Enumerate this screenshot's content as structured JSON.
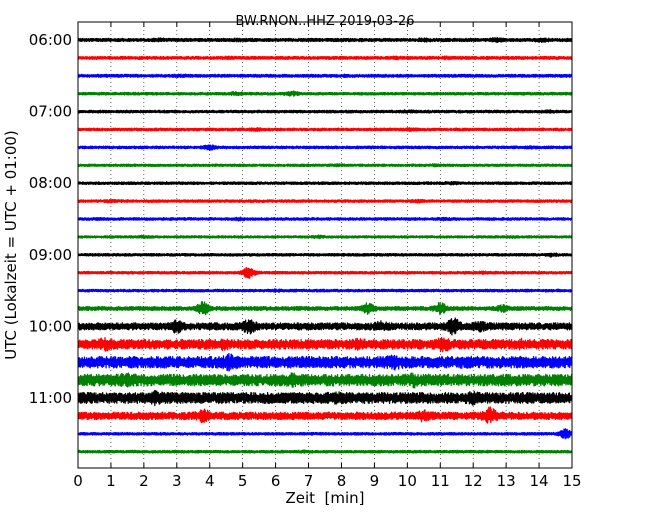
{
  "chart_data": {
    "type": "line",
    "title": "BW.RNON..HHZ 2019-03-26",
    "xlabel": "Zeit  [min]",
    "ylabel": "UTC (Lokalzeit = UTC + 01:00)",
    "xlim": [
      0,
      15
    ],
    "x_ticks": [
      "0",
      "1",
      "2",
      "3",
      "4",
      "5",
      "6",
      "7",
      "8",
      "9",
      "10",
      "11",
      "12",
      "13",
      "14",
      "15"
    ],
    "y_ticks": [
      "06:00",
      "07:00",
      "08:00",
      "09:00",
      "10:00",
      "11:00"
    ],
    "grid": "vertical dotted at each minute",
    "trace_colors": [
      "#000000",
      "#ff0000",
      "#0000ff",
      "#008000"
    ],
    "series": [
      {
        "start": "06:00",
        "amplitude": 1.0,
        "events": [
          {
            "t": 2.5,
            "a": 1.3
          },
          {
            "t": 4.9,
            "a": 1.2
          },
          {
            "t": 10.5,
            "a": 1.3
          },
          {
            "t": 12.7,
            "a": 1.6
          },
          {
            "t": 14.1,
            "a": 1.6
          }
        ]
      },
      {
        "start": "06:15",
        "amplitude": 0.9,
        "events": [
          {
            "t": 4.5,
            "a": 1.2
          },
          {
            "t": 9.7,
            "a": 1.2
          },
          {
            "t": 11.2,
            "a": 1.2
          }
        ]
      },
      {
        "start": "06:30",
        "amplitude": 0.9,
        "events": [
          {
            "t": 3.1,
            "a": 1.2
          },
          {
            "t": 8.1,
            "a": 1.1
          }
        ]
      },
      {
        "start": "06:45",
        "amplitude": 0.8,
        "events": [
          {
            "t": 4.8,
            "a": 1.5
          },
          {
            "t": 6.5,
            "a": 1.7
          }
        ]
      },
      {
        "start": "07:00",
        "amplitude": 0.8,
        "events": [
          {
            "t": 10.0,
            "a": 1.2
          },
          {
            "t": 14.3,
            "a": 1.1
          }
        ]
      },
      {
        "start": "07:15",
        "amplitude": 0.8,
        "events": [
          {
            "t": 5.4,
            "a": 1.3
          },
          {
            "t": 10.1,
            "a": 1.2
          }
        ]
      },
      {
        "start": "07:30",
        "amplitude": 0.8,
        "events": [
          {
            "t": 4.0,
            "a": 1.9
          },
          {
            "t": 13.8,
            "a": 1.0
          }
        ]
      },
      {
        "start": "07:45",
        "amplitude": 0.7,
        "events": [
          {
            "t": 7.9,
            "a": 1.0
          },
          {
            "t": 10.8,
            "a": 1.0
          }
        ]
      },
      {
        "start": "08:00",
        "amplitude": 0.8,
        "events": [
          {
            "t": 11.3,
            "a": 1.2
          }
        ]
      },
      {
        "start": "08:15",
        "amplitude": 0.8,
        "events": [
          {
            "t": 1.0,
            "a": 1.1
          },
          {
            "t": 10.3,
            "a": 1.3
          }
        ]
      },
      {
        "start": "08:30",
        "amplitude": 0.8,
        "events": [
          {
            "t": 0.6,
            "a": 1.0
          },
          {
            "t": 4.9,
            "a": 1.3
          },
          {
            "t": 11.1,
            "a": 1.2
          }
        ]
      },
      {
        "start": "08:45",
        "amplitude": 0.7,
        "events": [
          {
            "t": 2.0,
            "a": 1.1
          },
          {
            "t": 7.3,
            "a": 1.1
          },
          {
            "t": 13.2,
            "a": 1.0
          }
        ]
      },
      {
        "start": "09:00",
        "amplitude": 0.8,
        "events": [
          {
            "t": 14.4,
            "a": 1.4
          }
        ]
      },
      {
        "start": "09:15",
        "amplitude": 0.8,
        "events": [
          {
            "t": 5.2,
            "a": 4.0
          },
          {
            "t": 12.3,
            "a": 1.1
          }
        ]
      },
      {
        "start": "09:30",
        "amplitude": 0.8,
        "events": [
          {
            "t": 6.0,
            "a": 1.1
          }
        ]
      },
      {
        "start": "09:45",
        "amplitude": 1.2,
        "events": [
          {
            "t": 3.8,
            "a": 4.5
          },
          {
            "t": 8.8,
            "a": 3.8
          },
          {
            "t": 11.0,
            "a": 4.3
          },
          {
            "t": 12.9,
            "a": 2.5
          }
        ]
      },
      {
        "start": "10:00",
        "amplitude": 2.2,
        "events": [
          {
            "t": 3.0,
            "a": 4.5
          },
          {
            "t": 5.2,
            "a": 5.0
          },
          {
            "t": 9.2,
            "a": 3.5
          },
          {
            "t": 11.4,
            "a": 6.0
          },
          {
            "t": 12.2,
            "a": 3.5
          }
        ]
      },
      {
        "start": "10:15",
        "amplitude": 3.0,
        "events": [
          {
            "t": 0.8,
            "a": 4.5
          },
          {
            "t": 4.4,
            "a": 3.8
          },
          {
            "t": 8.5,
            "a": 3.8
          },
          {
            "t": 11.1,
            "a": 5.0
          },
          {
            "t": 13.4,
            "a": 3.8
          }
        ]
      },
      {
        "start": "10:30",
        "amplitude": 3.6,
        "events": [
          {
            "t": 4.6,
            "a": 5.5
          },
          {
            "t": 9.6,
            "a": 5.0
          },
          {
            "t": 11.8,
            "a": 4.2
          }
        ]
      },
      {
        "start": "10:45",
        "amplitude": 3.6,
        "events": [
          {
            "t": 1.5,
            "a": 4.8
          },
          {
            "t": 6.5,
            "a": 4.6
          },
          {
            "t": 10.2,
            "a": 4.8
          }
        ]
      },
      {
        "start": "11:00",
        "amplitude": 3.4,
        "events": [
          {
            "t": 2.4,
            "a": 5.2
          },
          {
            "t": 7.8,
            "a": 4.2
          },
          {
            "t": 12.0,
            "a": 4.6
          }
        ]
      },
      {
        "start": "11:15",
        "amplitude": 2.3,
        "events": [
          {
            "t": 3.8,
            "a": 4.6
          },
          {
            "t": 10.5,
            "a": 4.2
          },
          {
            "t": 12.5,
            "a": 6.0
          }
        ]
      },
      {
        "start": "11:30",
        "amplitude": 0.8,
        "events": [
          {
            "t": 14.8,
            "a": 3.2
          }
        ]
      },
      {
        "start": "11:45",
        "amplitude": 0.8,
        "events": [
          {
            "t": 6.9,
            "a": 1.1
          }
        ]
      }
    ]
  }
}
